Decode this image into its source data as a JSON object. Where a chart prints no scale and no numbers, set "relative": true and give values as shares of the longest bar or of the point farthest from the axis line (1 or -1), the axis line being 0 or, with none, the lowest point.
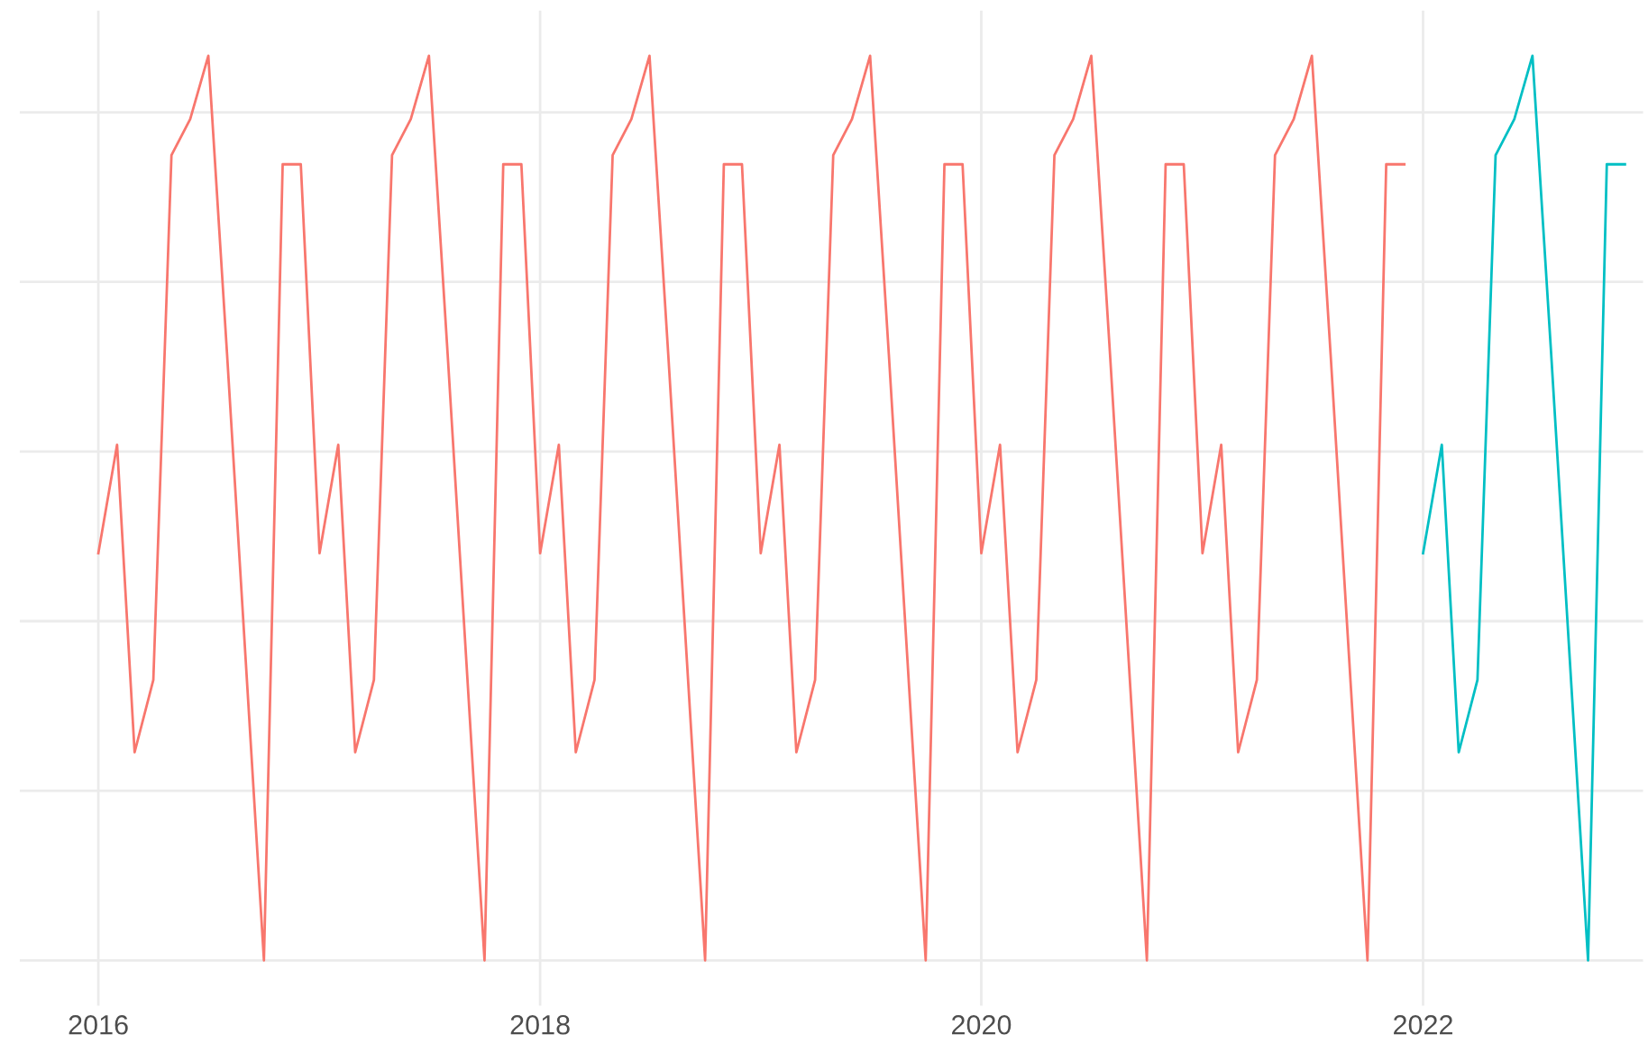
{
  "chart_data": {
    "type": "line",
    "relative": true,
    "grid": true,
    "legend": false,
    "line_style": "solid",
    "xlim": [
      "2015-08-24",
      "2022-12-31"
    ],
    "xticks": [
      {
        "value": "2016-01-01",
        "label": "2016"
      },
      {
        "value": "2018-01-01",
        "label": "2018"
      },
      {
        "value": "2020-01-01",
        "label": "2020"
      },
      {
        "value": "2022-01-01",
        "label": "2022"
      }
    ],
    "tick_labels": "x",
    "series": [
      {
        "color": "#f8766d",
        "x": [
          "2016-01",
          "2016-02",
          "2016-03",
          "2016-04",
          "2016-05",
          "2016-06",
          "2016-07",
          "2016-08",
          "2016-09",
          "2016-10",
          "2016-11",
          "2016-12",
          "2017-01",
          "2017-02",
          "2017-03",
          "2017-04",
          "2017-05",
          "2017-06",
          "2017-07",
          "2017-08",
          "2017-09",
          "2017-10",
          "2017-11",
          "2017-12",
          "2018-01",
          "2018-02",
          "2018-03",
          "2018-04",
          "2018-05",
          "2018-06",
          "2018-07",
          "2018-08",
          "2018-09",
          "2018-10",
          "2018-11",
          "2018-12",
          "2019-01",
          "2019-02",
          "2019-03",
          "2019-04",
          "2019-05",
          "2019-06",
          "2019-07",
          "2019-08",
          "2019-09",
          "2019-10",
          "2019-11",
          "2019-12",
          "2020-01",
          "2020-02",
          "2020-03",
          "2020-04",
          "2020-05",
          "2020-06",
          "2020-07",
          "2020-08",
          "2020-09",
          "2020-10",
          "2020-11",
          "2020-12",
          "2021-01",
          "2021-02",
          "2021-03",
          "2021-04",
          "2021-05",
          "2021-06",
          "2021-07",
          "2021-08",
          "2021-09",
          "2021-10",
          "2021-11",
          "2021-12"
        ],
        "values": [
          0.45,
          0.57,
          0.23,
          0.31,
          0.89,
          0.93,
          1,
          0.67,
          0.33,
          0,
          0.88,
          0.88,
          0.45,
          0.57,
          0.23,
          0.31,
          0.89,
          0.93,
          1,
          0.67,
          0.33,
          0,
          0.88,
          0.88,
          0.45,
          0.57,
          0.23,
          0.31,
          0.89,
          0.93,
          1,
          0.67,
          0.33,
          0,
          0.88,
          0.88,
          0.45,
          0.57,
          0.23,
          0.31,
          0.89,
          0.93,
          1,
          0.67,
          0.33,
          0,
          0.88,
          0.88,
          0.45,
          0.57,
          0.23,
          0.31,
          0.89,
          0.93,
          1,
          0.67,
          0.33,
          0,
          0.88,
          0.88,
          0.45,
          0.57,
          0.23,
          0.31,
          0.89,
          0.93,
          1,
          0.67,
          0.33,
          0,
          0.88,
          0.88
        ]
      },
      {
        "color": "#00bfc4",
        "x": [
          "2022-01",
          "2022-02",
          "2022-03",
          "2022-04",
          "2022-05",
          "2022-06",
          "2022-07",
          "2022-08",
          "2022-09",
          "2022-10",
          "2022-11",
          "2022-12"
        ],
        "values": [
          0.45,
          0.57,
          0.23,
          0.31,
          0.89,
          0.93,
          1,
          0.67,
          0.33,
          0,
          0.88,
          0.88
        ]
      }
    ]
  }
}
